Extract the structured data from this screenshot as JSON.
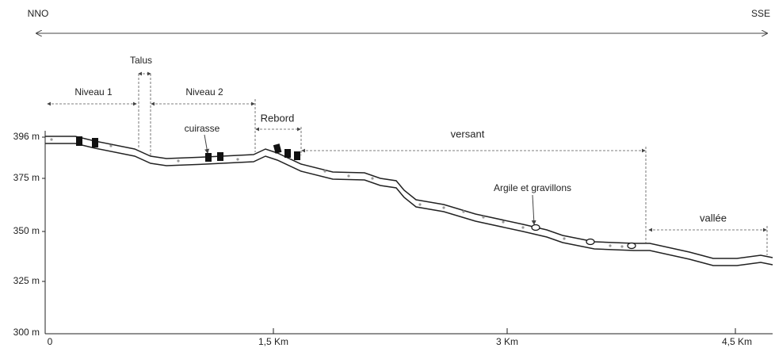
{
  "directions": {
    "left": "NNO",
    "right": "SSE"
  },
  "zones": {
    "talus": "Talus",
    "niveau_1": "Niveau 1",
    "niveau_2": "Niveau 2",
    "rebord": "Rebord",
    "versant": "versant",
    "vallee": "vallée"
  },
  "annotations": {
    "cuirasse": "cuirasse",
    "argile": "Argile et gravillons"
  },
  "y_axis": {
    "ticks": [
      "396 m",
      "375 m",
      "350 m",
      "325 m",
      "300 m"
    ]
  },
  "x_axis": {
    "ticks": [
      "0",
      "1,5 Km",
      "3 Km",
      "4,5 Km"
    ]
  }
}
